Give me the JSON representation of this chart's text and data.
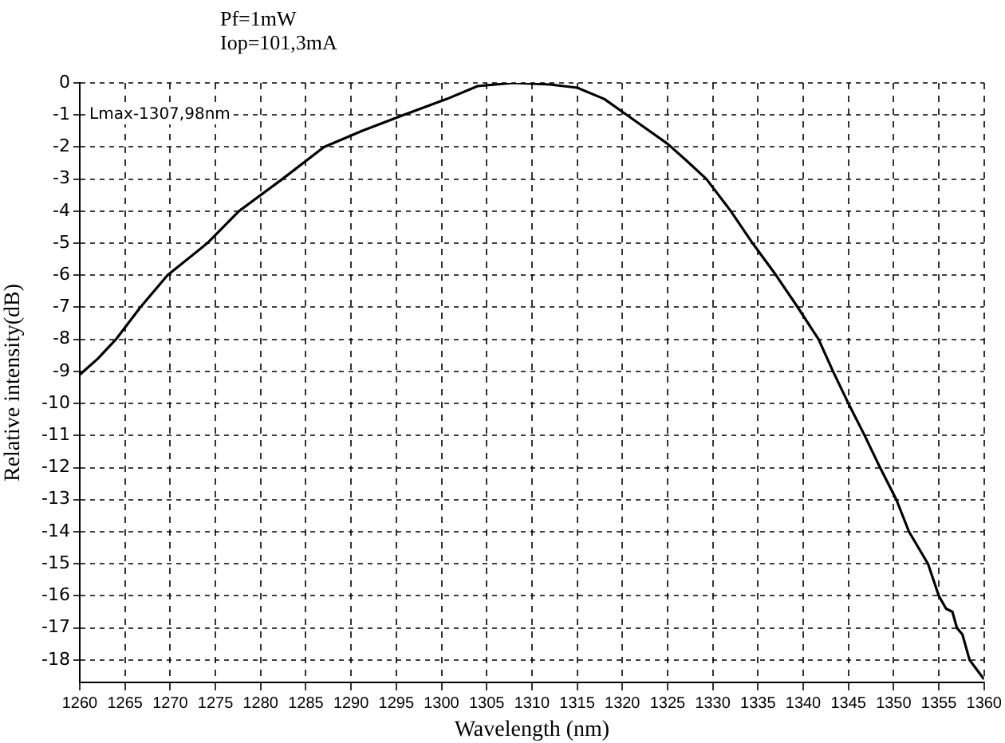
{
  "chart_data": {
    "type": "line",
    "title": "Pf=1mW",
    "subtitle": "Iop=101,3mA",
    "xlabel": "Wavelength (nm)",
    "ylabel": "Relative intensity(dB)",
    "annotations": [
      "Lmax-1307,98nm"
    ],
    "x": [
      1260,
      1262,
      1264,
      1266.7,
      1269.7,
      1274.1,
      1277.6,
      1282.4,
      1287,
      1291.2,
      1295.8,
      1300.6,
      1304,
      1307.98,
      1312,
      1315,
      1318,
      1320,
      1322.5,
      1325,
      1327,
      1329.3,
      1332,
      1334.4,
      1337,
      1339.4,
      1341.7,
      1343.3,
      1345,
      1346.8,
      1348.5,
      1350.3,
      1351.7,
      1353.8,
      1355,
      1355.8,
      1356.5,
      1357,
      1357.6,
      1358.4,
      1359.2,
      1360
    ],
    "series": [
      {
        "color": "#000000",
        "values": [
          -9.1,
          -8.6,
          -8,
          -7,
          -6,
          -5,
          -4,
          -3,
          -2,
          -1.5,
          -1,
          -0.5,
          -0.1,
          0,
          -0.05,
          -0.15,
          -0.5,
          -0.9,
          -1.4,
          -1.9,
          -2.4,
          -3,
          -4,
          -5,
          -6,
          -7,
          -8,
          -9,
          -10,
          -11,
          -12,
          -13,
          -14,
          -15,
          -16,
          -16.4,
          -16.5,
          -17,
          -17.2,
          -18,
          -18.3,
          -18.6
        ]
      }
    ],
    "xlim": [
      1260,
      1360
    ],
    "xticks": [
      1260,
      1265,
      1270,
      1275,
      1280,
      1285,
      1290,
      1295,
      1300,
      1305,
      1310,
      1315,
      1320,
      1325,
      1330,
      1335,
      1340,
      1345,
      1350,
      1355,
      1360
    ],
    "ylim": [
      -18.7,
      0
    ],
    "yticks": [
      0,
      -1,
      -2,
      -3,
      -4,
      -5,
      -6,
      -7,
      -8,
      -9,
      -10,
      -11,
      -12,
      -13,
      -14,
      -15,
      -16,
      -17,
      -18
    ],
    "grid": true,
    "legend": false,
    "marker": "none",
    "line_style": "solid"
  }
}
